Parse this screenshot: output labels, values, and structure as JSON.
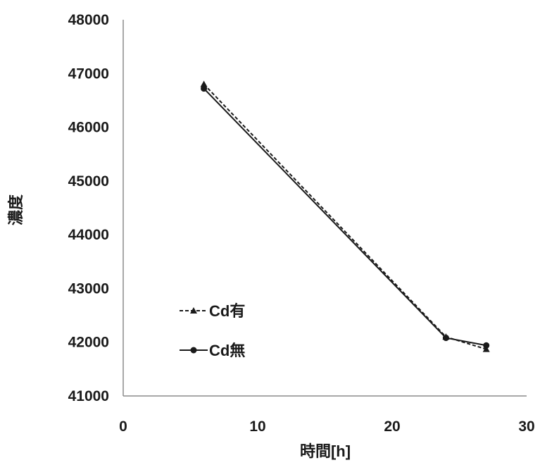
{
  "chart_data": {
    "type": "line",
    "xlabel": "時間[h]",
    "ylabel": "濃度",
    "xlim": [
      0,
      30
    ],
    "ylim": [
      41000,
      48000
    ],
    "x_ticks": [
      0,
      10,
      20,
      30
    ],
    "y_ticks": [
      41000,
      42000,
      43000,
      44000,
      45000,
      46000,
      47000,
      48000
    ],
    "grid": false,
    "legend_position": "left",
    "series": [
      {
        "name": "Cd有",
        "line_style": "dashed",
        "marker": "triangle",
        "x": [
          6,
          24,
          27
        ],
        "y": [
          46800,
          42100,
          41870
        ]
      },
      {
        "name": "Cd無",
        "line_style": "solid",
        "marker": "circle",
        "x": [
          6,
          24,
          27
        ],
        "y": [
          46720,
          42080,
          41940
        ]
      }
    ]
  }
}
